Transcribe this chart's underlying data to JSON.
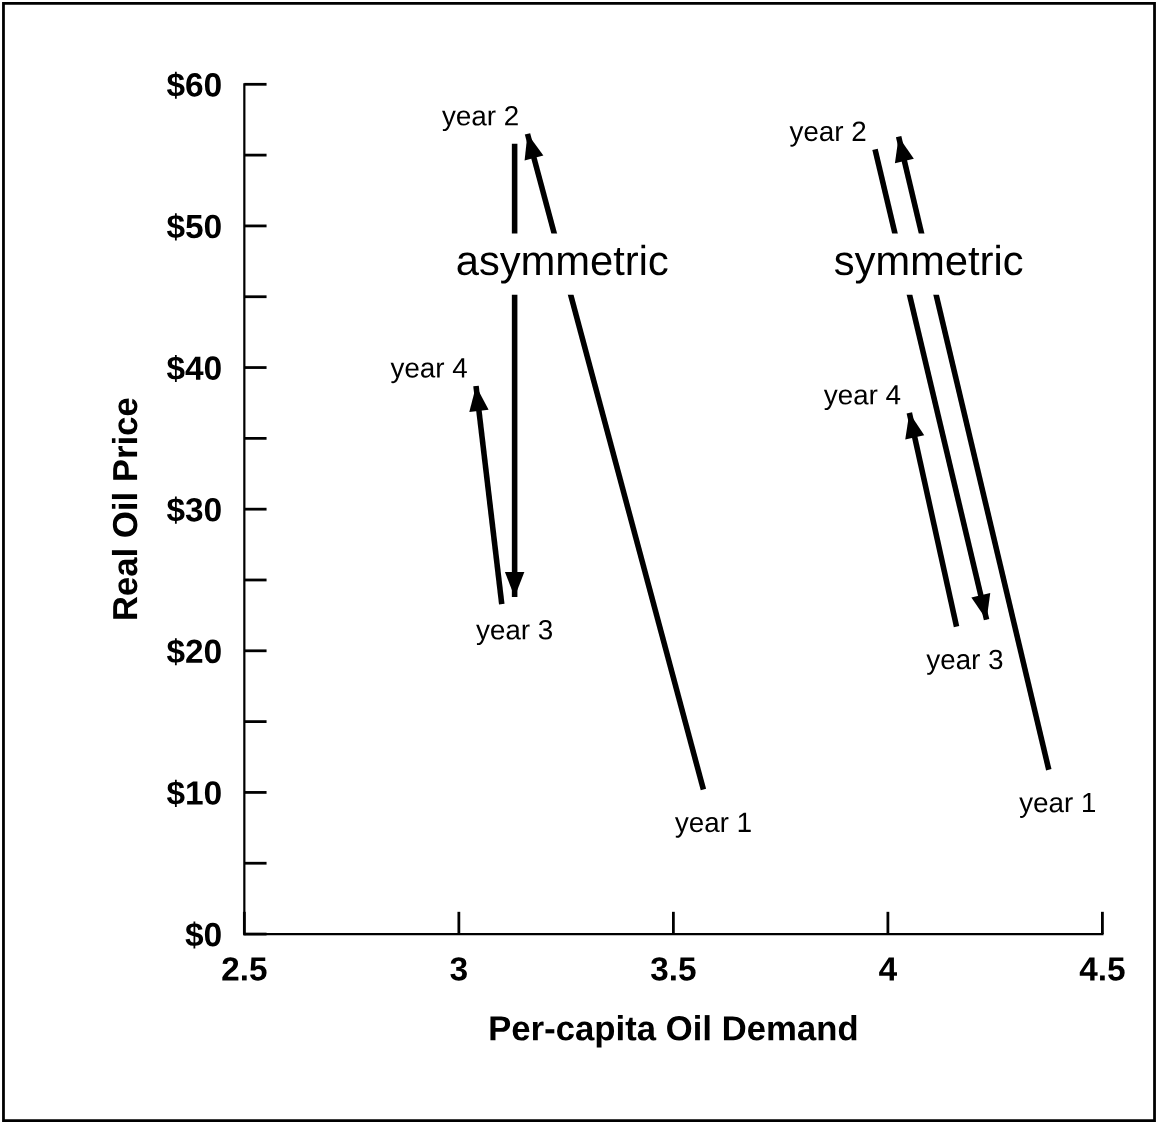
{
  "chart_data": {
    "type": "line",
    "xlabel": "Per-capita Oil Demand",
    "ylabel": "Real Oil Price",
    "xlim": [
      2.5,
      4.5
    ],
    "ylim": [
      0,
      60
    ],
    "xticks": [
      2.5,
      3,
      3.5,
      4,
      4.5
    ],
    "yticks": [
      {
        "value": 0,
        "label": "$0"
      },
      {
        "value": 5,
        "label": null
      },
      {
        "value": 10,
        "label": "$10"
      },
      {
        "value": 15,
        "label": null
      },
      {
        "value": 20,
        "label": "$20"
      },
      {
        "value": 25,
        "label": null
      },
      {
        "value": 30,
        "label": "$30"
      },
      {
        "value": 35,
        "label": null
      },
      {
        "value": 40,
        "label": "$40"
      },
      {
        "value": 45,
        "label": null
      },
      {
        "value": 50,
        "label": "$50"
      },
      {
        "value": 55,
        "label": null
      },
      {
        "value": 60,
        "label": "$60"
      }
    ],
    "grid": false,
    "legend": false,
    "marker": "none",
    "line_style": "solid",
    "series": [
      {
        "color": "#000000",
        "x": [
          3.57,
          3.16
        ],
        "values": [
          10.2,
          56.5
        ]
      },
      {
        "color": "#000000",
        "x": [
          3.13,
          3.13
        ],
        "values": [
          55.8,
          23.8
        ]
      },
      {
        "color": "#000000",
        "x": [
          3.1,
          3.04
        ],
        "values": [
          23.3,
          38.7
        ]
      },
      {
        "color": "#000000",
        "x": [
          4.375,
          4.025
        ],
        "values": [
          11.6,
          56.3
        ]
      },
      {
        "color": "#000000",
        "x": [
          3.97,
          4.23
        ],
        "values": [
          55.4,
          22.2
        ]
      },
      {
        "color": "#000000",
        "x": [
          4.16,
          4.05
        ],
        "values": [
          21.7,
          36.8
        ]
      }
    ],
    "annotations": [
      {
        "text": "asymmetric",
        "x": 3.241,
        "y": 47.3
      },
      {
        "text": "year 1",
        "x": 3.57,
        "y": 10.2
      },
      {
        "text": "year 2",
        "x": 3.16,
        "y": 56.5
      },
      {
        "text": "year 3",
        "x": 3.13,
        "y": 23.8
      },
      {
        "text": "year 4",
        "x": 3.04,
        "y": 38.7
      },
      {
        "text": "symmetric",
        "x": 4.095,
        "y": 47.3
      },
      {
        "text": "year 1",
        "x": 4.375,
        "y": 11.6
      },
      {
        "text": "year 2",
        "x": 3.97,
        "y": 55.4
      },
      {
        "text": "year 3",
        "x": 4.16,
        "y": 21.7
      },
      {
        "text": "year 4",
        "x": 4.05,
        "y": 36.8
      }
    ]
  }
}
